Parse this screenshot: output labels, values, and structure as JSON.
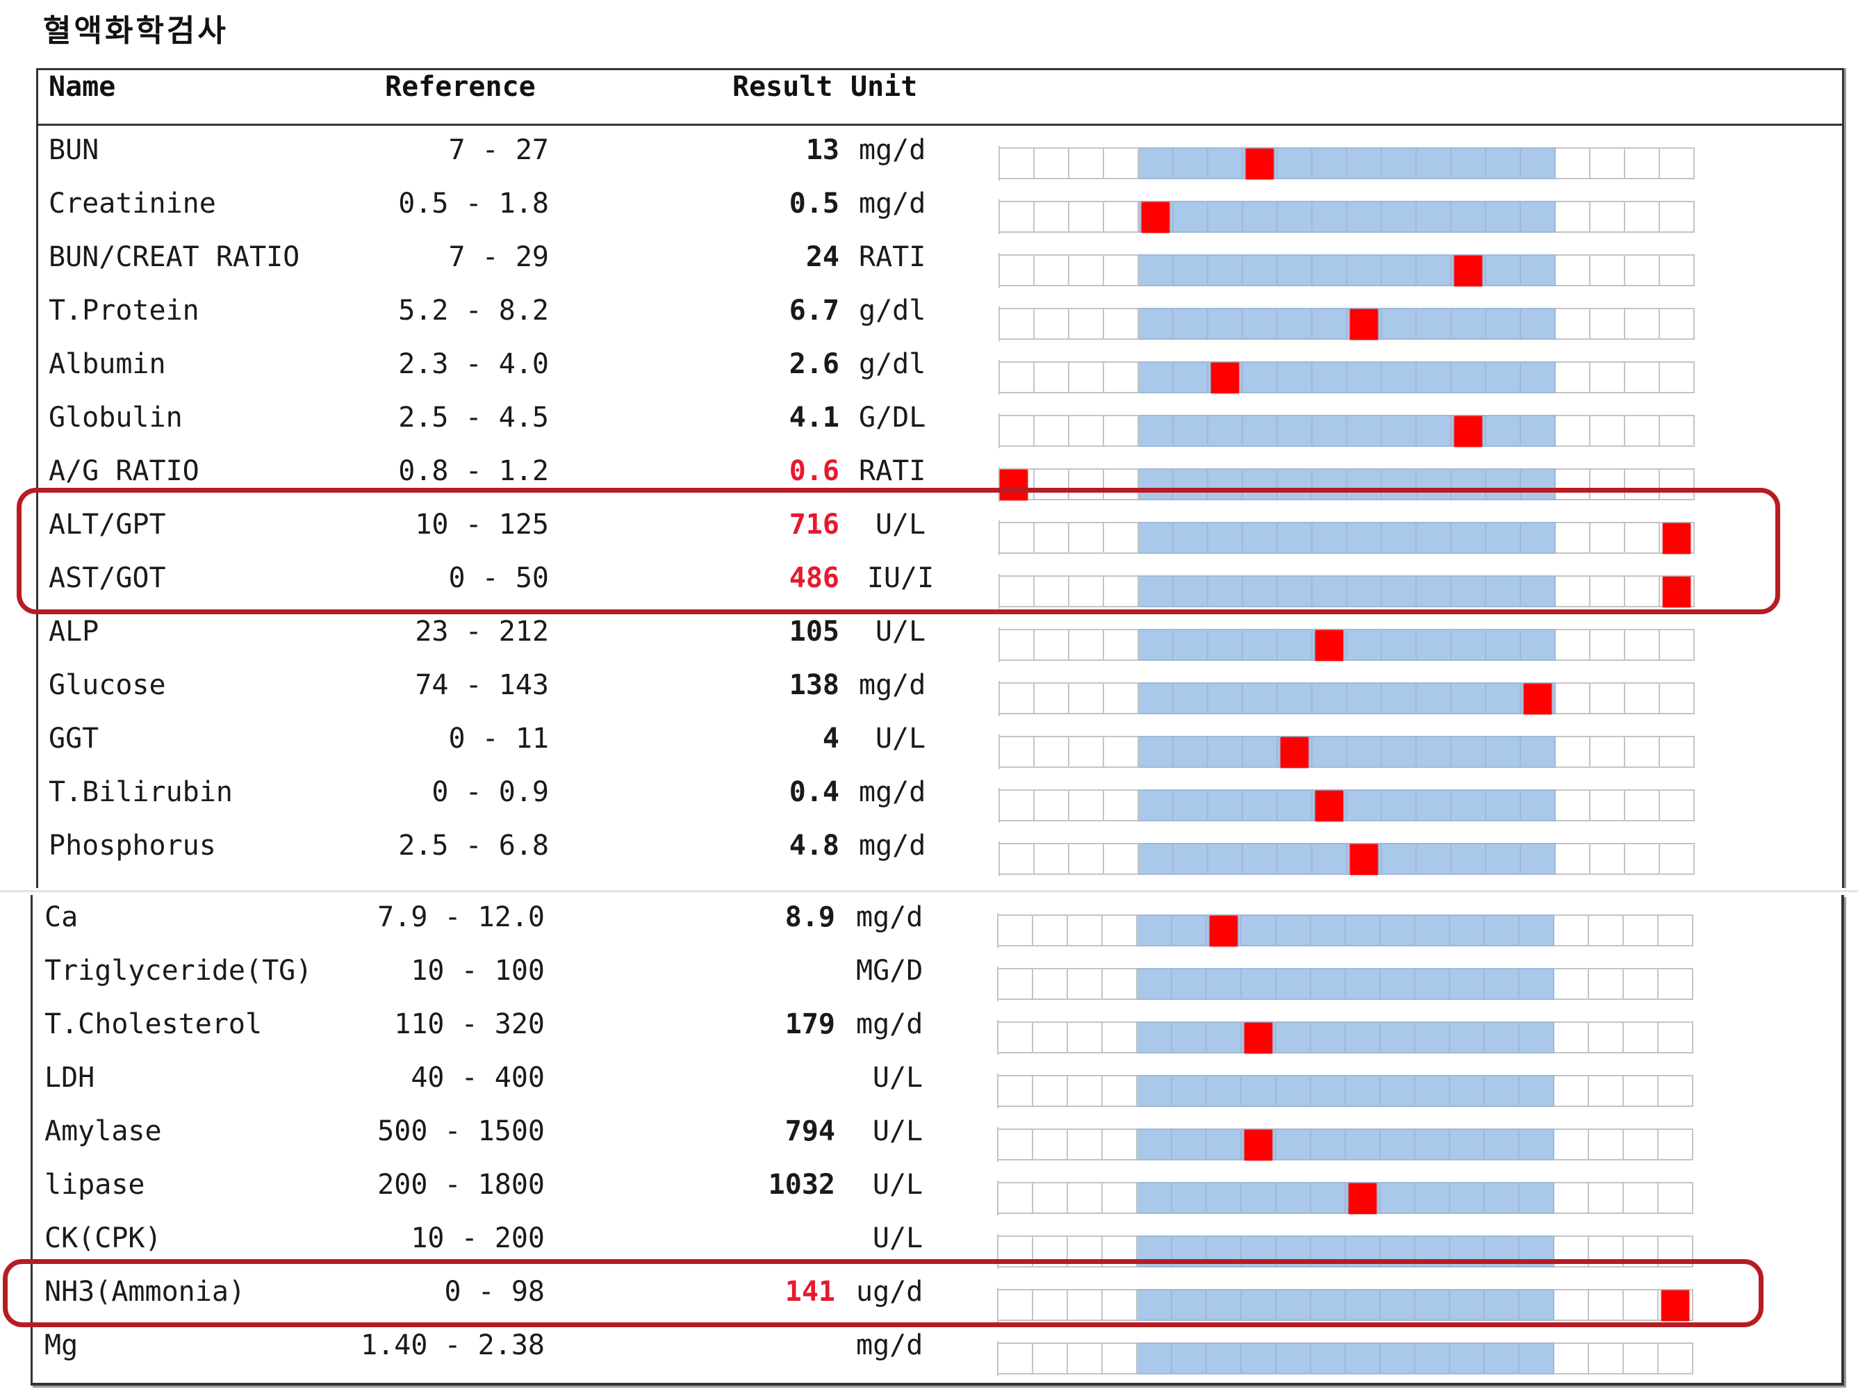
{
  "page_title": "혈액화학검사",
  "colors": {
    "flag_text": "#e8192c",
    "marker": "#ff0000",
    "in_range_band": "#a9c8ea",
    "highlight_outline": "#b81c23"
  },
  "table": {
    "headers": {
      "name": "Name",
      "reference": "Reference",
      "result": "Result",
      "unit": "Unit"
    },
    "rows": [
      {
        "name": "BUN",
        "reference": "7 - 27",
        "result": "13",
        "unit": "mg/d",
        "flagged": false,
        "marker_cell": 7
      },
      {
        "name": "Creatinine",
        "reference": "0.5 - 1.8",
        "result": "0.5",
        "unit": "mg/d",
        "flagged": false,
        "marker_cell": 4
      },
      {
        "name": "BUN/CREAT RATIO",
        "reference": "7 - 29",
        "result": "24",
        "unit": "RATI",
        "flagged": false,
        "marker_cell": 13
      },
      {
        "name": "T.Protein",
        "reference": "5.2 - 8.2",
        "result": "6.7",
        "unit": "g/dl",
        "flagged": false,
        "marker_cell": 10
      },
      {
        "name": "Albumin",
        "reference": "2.3 - 4.0",
        "result": "2.6",
        "unit": "g/dl",
        "flagged": false,
        "marker_cell": 6
      },
      {
        "name": "Globulin",
        "reference": "2.5 - 4.5",
        "result": "4.1",
        "unit": "G/DL",
        "flagged": false,
        "marker_cell": 13
      },
      {
        "name": "A/G RATIO",
        "reference": "0.8 - 1.2",
        "result": "0.6",
        "unit": "RATI",
        "flagged": true,
        "marker_cell": 0
      },
      {
        "name": "ALT/GPT",
        "reference": "10 - 125",
        "result": "716",
        "unit": "U/L",
        "flagged": true,
        "marker_cell": 19
      },
      {
        "name": "AST/GOT",
        "reference": "0 - 50",
        "result": "486",
        "unit": "IU/I",
        "flagged": true,
        "marker_cell": 19
      },
      {
        "name": "ALP",
        "reference": "23 - 212",
        "result": "105",
        "unit": "U/L",
        "flagged": false,
        "marker_cell": 9
      },
      {
        "name": "Glucose",
        "reference": "74 - 143",
        "result": "138",
        "unit": "mg/d",
        "flagged": false,
        "marker_cell": 15
      },
      {
        "name": "GGT",
        "reference": "0 - 11",
        "result": "4",
        "unit": "U/L",
        "flagged": false,
        "marker_cell": 8
      },
      {
        "name": "T.Bilirubin",
        "reference": "0 - 0.9",
        "result": "0.4",
        "unit": "mg/d",
        "flagged": false,
        "marker_cell": 9
      },
      {
        "name": "Phosphorus",
        "reference": "2.5 - 6.8",
        "result": "4.8",
        "unit": "mg/d",
        "flagged": false,
        "marker_cell": 10
      },
      {
        "name": "Ca",
        "reference": "7.9 - 12.0",
        "result": "8.9",
        "unit": "mg/d",
        "flagged": false,
        "marker_cell": 6
      },
      {
        "name": "Triglyceride(TG)",
        "reference": "10 - 100",
        "result": "",
        "unit": "MG/D",
        "flagged": false,
        "marker_cell": null
      },
      {
        "name": "T.Cholesterol",
        "reference": "110 - 320",
        "result": "179",
        "unit": "mg/d",
        "flagged": false,
        "marker_cell": 7
      },
      {
        "name": "LDH",
        "reference": "40 - 400",
        "result": "",
        "unit": "U/L",
        "flagged": false,
        "marker_cell": null
      },
      {
        "name": "Amylase",
        "reference": "500 - 1500",
        "result": "794",
        "unit": "U/L",
        "flagged": false,
        "marker_cell": 7
      },
      {
        "name": "lipase",
        "reference": "200 - 1800",
        "result": "1032",
        "unit": "U/L",
        "flagged": false,
        "marker_cell": 10
      },
      {
        "name": "CK(CPK)",
        "reference": "10 - 200",
        "result": "",
        "unit": "U/L",
        "flagged": false,
        "marker_cell": null
      },
      {
        "name": "NH3(Ammonia)",
        "reference": "0 - 98",
        "result": "141",
        "unit": "ug/d",
        "flagged": true,
        "marker_cell": 19
      },
      {
        "name": "Mg",
        "reference": "1.40 - 2.38",
        "result": "",
        "unit": "mg/d",
        "flagged": false,
        "marker_cell": null
      }
    ]
  }
}
